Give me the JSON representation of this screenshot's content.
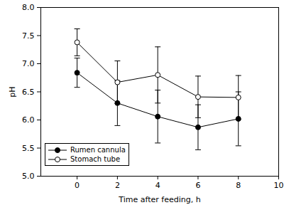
{
  "chart_data": {
    "type": "line",
    "x_label": "Time after feeding, h",
    "y_label": "pH",
    "x": [
      0,
      2,
      4,
      6,
      8
    ],
    "series": [
      {
        "name": "Rumen cannula",
        "color": "#000000",
        "marker": "circle",
        "line_style": "solid",
        "values": [
          6.84,
          6.3,
          6.06,
          5.87,
          6.02
        ],
        "errors": [
          0.26,
          0.4,
          0.47,
          0.4,
          0.48
        ]
      },
      {
        "name": "Stomach tube",
        "color": "#000000",
        "marker": "circle-open",
        "line_style": "solid",
        "values": [
          7.38,
          6.67,
          6.8,
          6.41,
          6.4
        ],
        "errors": [
          0.24,
          0.38,
          0.5,
          0.37,
          0.39
        ]
      }
    ],
    "xlim": [
      -1.8,
      10
    ],
    "xticks": [
      0,
      2,
      4,
      6,
      8,
      10
    ],
    "ylim": [
      5.0,
      8.0
    ],
    "yticks": [
      {
        "value": 5.0,
        "label": "5.0"
      },
      {
        "value": 5.5,
        "label": "5.5"
      },
      {
        "value": 6.0,
        "label": "6.0"
      },
      {
        "value": 6.5,
        "label": "6.5"
      },
      {
        "value": 7.0,
        "label": "7.0"
      },
      {
        "value": 7.5,
        "label": "7.5"
      },
      {
        "value": 8.0,
        "label": "8.0"
      }
    ],
    "grid": false,
    "legend": "lower left"
  }
}
